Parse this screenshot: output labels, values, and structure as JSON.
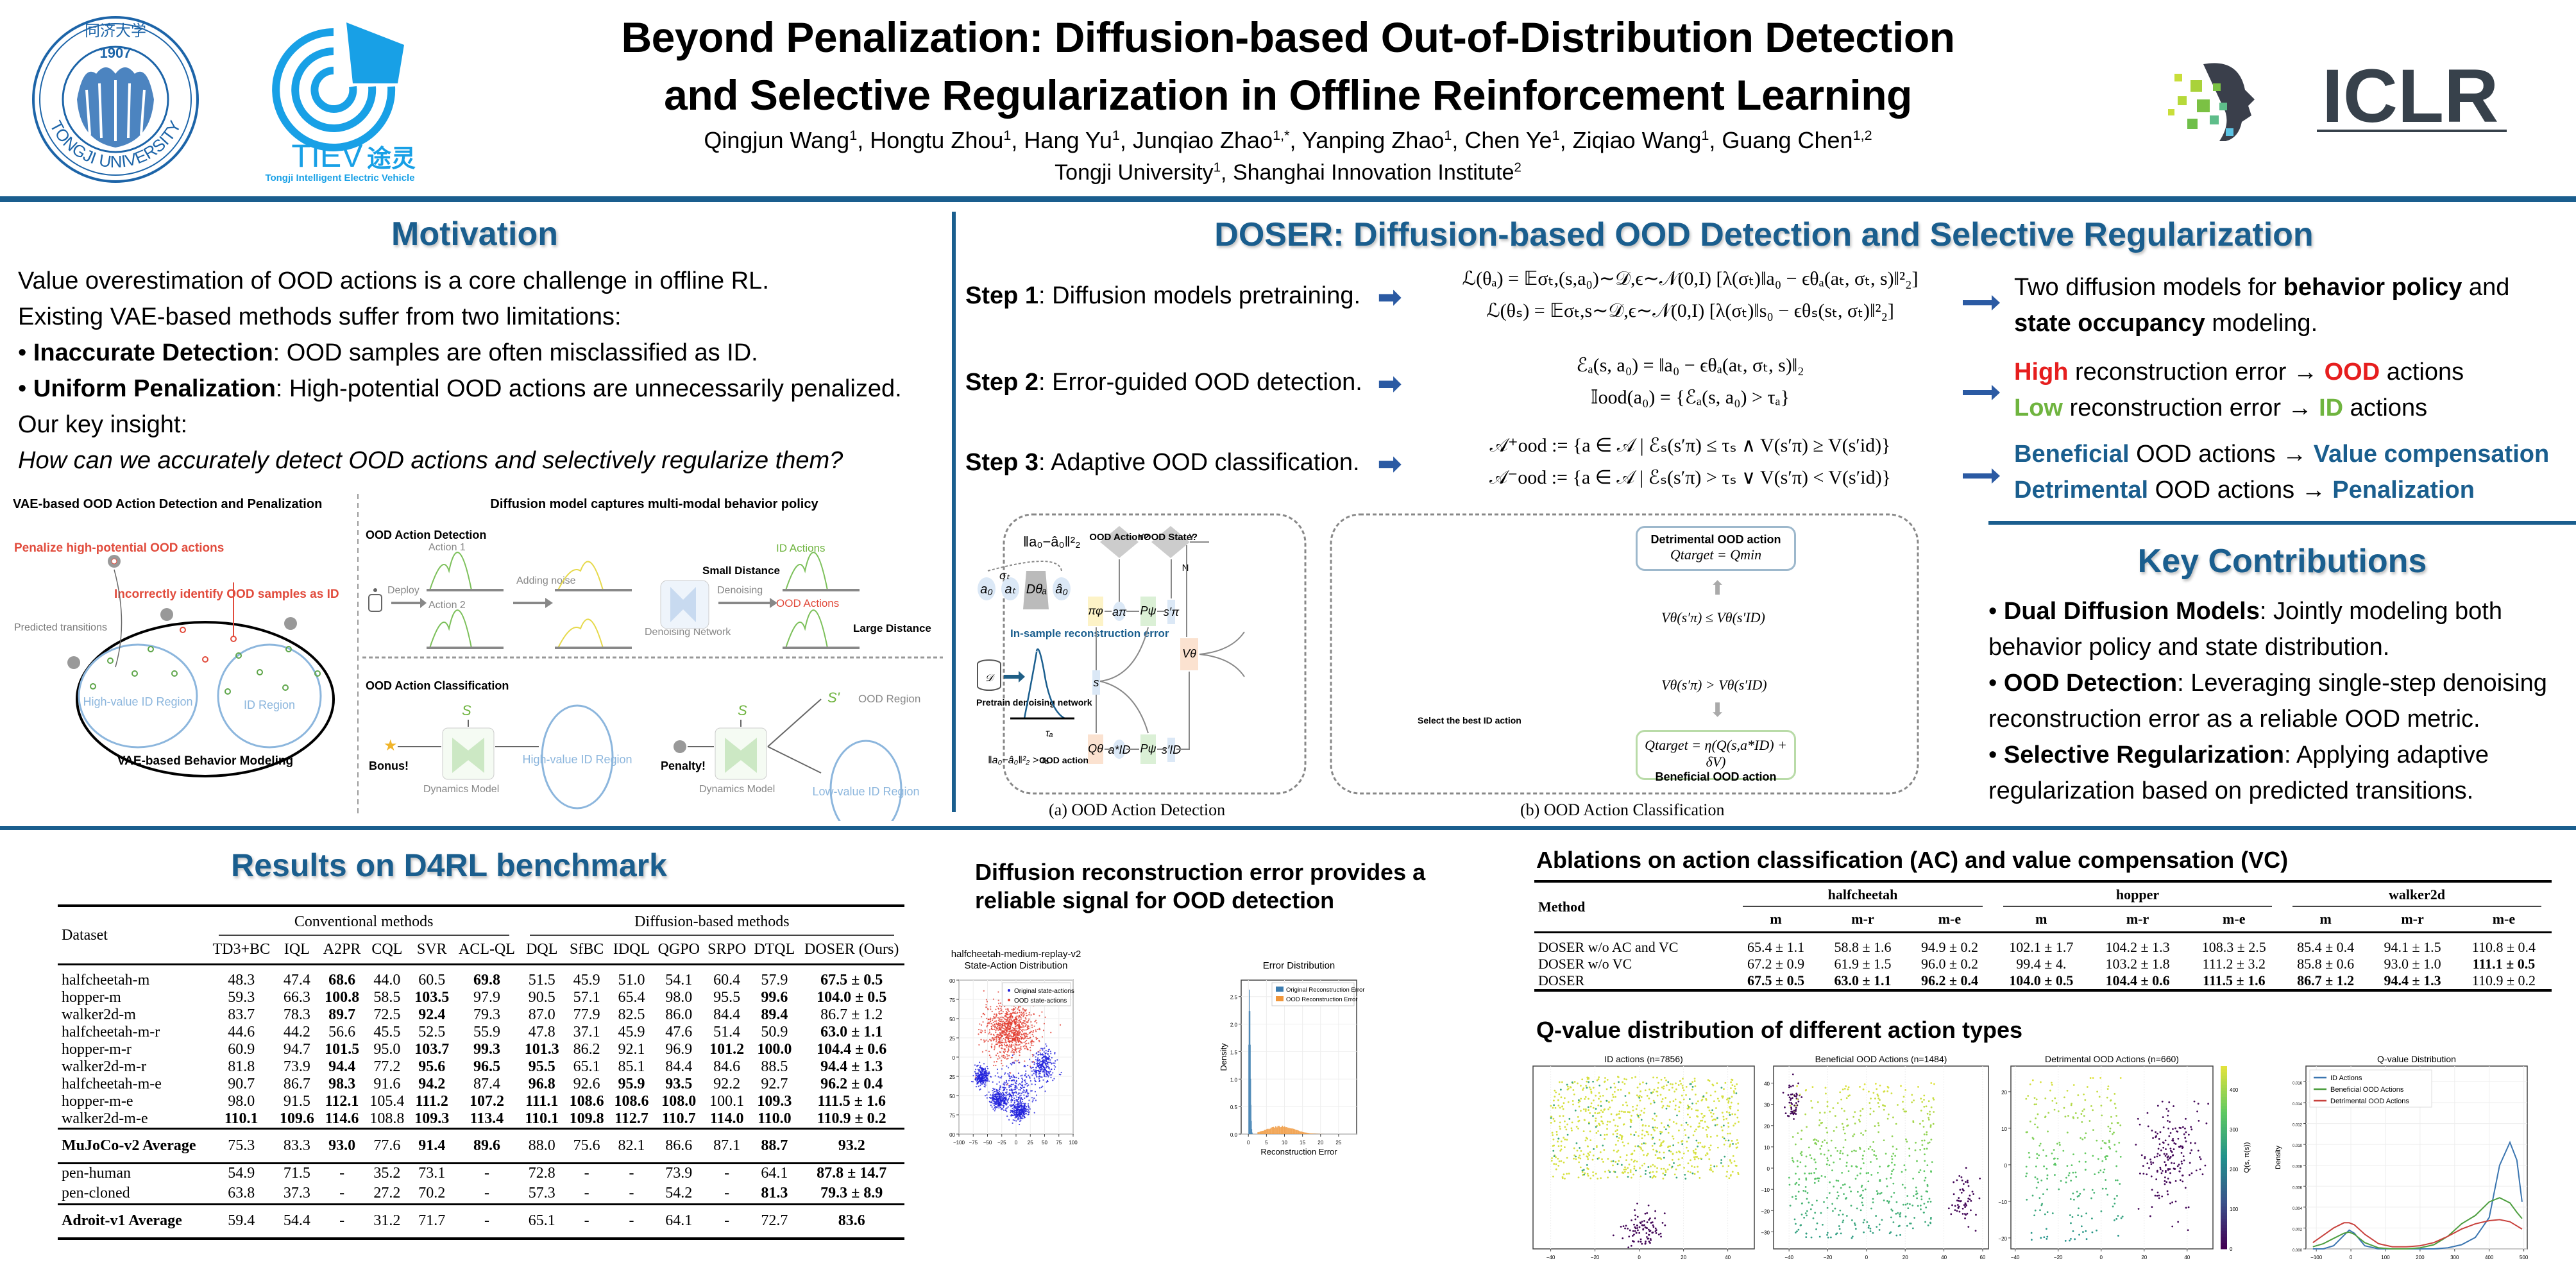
{
  "header": {
    "logos": {
      "tongji": {
        "text_top": "同济大学",
        "year": "1907",
        "text_bottom": "TONGJI UNIVERSITY"
      },
      "tiev": {
        "name": "TIEV",
        "chinese": "途灵",
        "subtitle": "Tongji Intelligent Electric Vehicle"
      },
      "iclr": {
        "name": "ICLR"
      }
    },
    "title_line1": "Beyond Penalization: Diffusion-based Out-of-Distribution Detection",
    "title_line2": "and Selective Regularization in Offline Reinforcement Learning",
    "authors": [
      {
        "name": "Qingjun Wang",
        "aff": "1"
      },
      {
        "name": "Hongtu Zhou",
        "aff": "1"
      },
      {
        "name": "Hang Yu",
        "aff": "1"
      },
      {
        "name": "Junqiao Zhao",
        "aff": "1,*"
      },
      {
        "name": "Yanping Zhao",
        "aff": "1"
      },
      {
        "name": "Chen Ye",
        "aff": "1"
      },
      {
        "name": "Ziqiao Wang",
        "aff": "1"
      },
      {
        "name": "Guang Chen",
        "aff": "1,2"
      }
    ],
    "affiliations": [
      {
        "name": "Tongji University",
        "aff": "1"
      },
      {
        "name": "Shanghai Innovation Institute",
        "aff": "2"
      }
    ]
  },
  "colors": {
    "accent": "#1a5e8e",
    "red": "#e61e1e",
    "green": "#6fb43f"
  },
  "motivation": {
    "title": "Motivation",
    "line1": "Value overestimation of OOD actions is a core challenge in offline RL.",
    "line2": "Existing VAE-based methods suffer from two limitations:",
    "bullet1_bold": "Inaccurate Detection",
    "bullet1_rest": ": OOD samples are often misclassified as ID.",
    "bullet2_bold": "Uniform Penalization",
    "bullet2_rest": ": High-potential OOD actions are unnecessarily penalized.",
    "line3": "Our key insight:",
    "question": "How can we accurately detect OOD actions and selectively regularize them?",
    "figure": {
      "left_title": "VAE-based OOD Action Detection and Penalization",
      "right_title": "Diffusion model captures multi-modal behavior policy",
      "penalize": "Penalize high-potential OOD actions",
      "incorrect": "Incorrectly identify OOD samples as ID",
      "predicted": "Predicted transitions",
      "high_value_region": "High-value ID Region",
      "id_region": "ID Region",
      "vae_label": "VAE-based Behavior Modeling",
      "detection_title": "OOD Action Detection",
      "action1": "Action 1",
      "action2": "Action 2",
      "deploy": "Deploy",
      "adding_noise": "Adding noise",
      "denoising": "Denoising",
      "denoising_network": "Denoising Network",
      "id_actions": "ID Actions",
      "ood_actions": "OOD Actions",
      "small_distance": "Small Distance",
      "large_distance": "Large Distance",
      "classification_title": "OOD Action Classification",
      "bonus": "Bonus!",
      "penalty": "Penalty!",
      "dynamics_model": "Dynamics Model",
      "s": "S",
      "s_prime": "S'",
      "ood_region": "OOD Region",
      "low_value_region": "Low-value ID Region"
    }
  },
  "doser": {
    "title": "DOSER: Diffusion-based OOD Detection and Selective Regularization",
    "steps": [
      {
        "label": "Step 1",
        "text": ": Diffusion models pretraining.",
        "eq1": "ℒ(θₐ) = 𝔼σₜ,(s,a₀)∼𝒟,ϵ∼𝒩(0,I) [λ(σₜ)‖a₀ − ϵθₐ(aₜ, σₜ, s)‖²₂]",
        "eq2": "ℒ(θₛ) = 𝔼σₜ,s∼𝒟,ϵ∼𝒩(0,I) [λ(σₜ)‖s₀ − ϵθₛ(sₜ, σₜ)‖²₂]"
      },
      {
        "label": "Step 2",
        "text": ": Error-guided OOD detection.",
        "eq1": "ℰₐ(s, a₀) = ‖a₀ − ϵθₐ(aₜ, σₜ, s)‖₂",
        "eq2": "𝕀ood(a₀) = {ℰₐ(s, a₀) > τₐ}"
      },
      {
        "label": "Step 3",
        "text": ": Adaptive OOD classification.",
        "eq1": "𝒜⁺ood := {a ∈ 𝒜 | ℰₛ(s′π) ≤ τₛ ∧ V(s′π) ≥ V(s′id)}",
        "eq2": "𝒜⁻ood := {a ∈ 𝒜 | ℰₛ(s′π) > τₛ ∨ V(s′π) < V(s′id)}"
      }
    ],
    "outcomes": {
      "o1_pre": "Two diffusion models for ",
      "o1_b1": "behavior policy",
      "o1_mid": " and ",
      "o1_b2": "state occupancy",
      "o1_post": " modeling.",
      "o2a_hi": "High",
      "o2a_mid": " reconstruction error → ",
      "o2a_ood": "OOD",
      "o2a_post": " actions",
      "o2b_lo": "Low",
      "o2b_mid": " reconstruction error → ",
      "o2b_id": "ID",
      "o2b_post": " actions",
      "o3a_b": "Beneficial",
      "o3a_mid": " OOD actions → ",
      "o3a_r": "Value compensation",
      "o3b_d": "Detrimental",
      "o3b_mid": " OOD actions → ",
      "o3b_r": "Penalization"
    },
    "figure": {
      "caption_a": "(a) OOD Action Detection",
      "caption_b": "(b) OOD Action Classification",
      "recon_norm": "‖a₀−â₀‖²₂",
      "sigma_t": "σₜ",
      "a0": "a₀",
      "at": "aₜ",
      "D": "Dθₐ",
      "a0hat": "â₀",
      "in_sample": "In-sample reconstruction error",
      "dataset": "𝒟",
      "pretrain": "Pretrain denoising network",
      "tau_a": "τₐ",
      "rule": "‖a₀−â₀‖²₂ > τₐ",
      "ood_action": "OOD action",
      "ood_action_q": "OOD Action?",
      "ood_state_q": "OOD State?",
      "yes": "Y",
      "no": "N",
      "pi": "πφ",
      "a_pi": "aπ",
      "P": "Pψ",
      "s_pi": "s′π",
      "s": "s",
      "V": "Vθ",
      "Q": "Qθ",
      "a_id": "a*ID",
      "s_id": "s′ID",
      "select_best": "Select the best ID action",
      "detrimental_box": "Detrimental OOD action",
      "detrimental_eq": "Qtarget = Qmin",
      "cond_le": "Vθ(s′π) ≤ Vθ(s′ID)",
      "cond_gt": "Vθ(s′π) > Vθ(s′ID)",
      "beneficial_eq": "Qtarget = η(Q(s,a*ID) + δV)",
      "beneficial_box": "Beneficial OOD action"
    }
  },
  "contributions": {
    "title": "Key Contributions",
    "items": [
      {
        "bold": "Dual Diffusion Models",
        "text": ": Jointly modeling both behavior policy and state distribution."
      },
      {
        "bold": "OOD Detection",
        "text": ": Leveraging single-step denoising reconstruction error as a reliable OOD metric."
      },
      {
        "bold": "Selective Regularization",
        "text": ": Applying adaptive regularization based on predicted transitions."
      }
    ]
  },
  "results": {
    "title": "Results on D4RL benchmark",
    "dataset_header": "Dataset",
    "group_conventional": "Conventional methods",
    "group_diffusion": "Diffusion-based methods",
    "columns": [
      "TD3+BC",
      "IQL",
      "A2PR",
      "CQL",
      "SVR",
      "ACL-QL",
      "DQL",
      "SfBC",
      "IDQL",
      "QGPO",
      "SRPO",
      "DTQL",
      "DOSER (Ours)"
    ],
    "rows": [
      {
        "name": "halfcheetah-m",
        "values": [
          "48.3",
          "47.4",
          "68.6",
          "44.0",
          "60.5",
          "69.8",
          "51.5",
          "45.9",
          "51.0",
          "54.1",
          "60.4",
          "57.9",
          "67.5 ± 0.5"
        ],
        "bold": [
          2,
          5,
          12
        ]
      },
      {
        "name": "hopper-m",
        "values": [
          "59.3",
          "66.3",
          "100.8",
          "58.5",
          "103.5",
          "97.9",
          "90.5",
          "57.1",
          "65.4",
          "98.0",
          "95.5",
          "99.6",
          "104.0 ± 0.5"
        ],
        "bold": [
          2,
          4,
          11,
          12
        ]
      },
      {
        "name": "walker2d-m",
        "values": [
          "83.7",
          "78.3",
          "89.7",
          "72.5",
          "92.4",
          "79.3",
          "87.0",
          "77.9",
          "82.5",
          "86.0",
          "84.4",
          "89.4",
          "86.7 ± 1.2"
        ],
        "bold": [
          2,
          4,
          11
        ]
      },
      {
        "name": "halfcheetah-m-r",
        "values": [
          "44.6",
          "44.2",
          "56.6",
          "45.5",
          "52.5",
          "55.9",
          "47.8",
          "37.1",
          "45.9",
          "47.6",
          "51.4",
          "50.9",
          "63.0 ± 1.1"
        ],
        "bold": [
          12
        ]
      },
      {
        "name": "hopper-m-r",
        "values": [
          "60.9",
          "94.7",
          "101.5",
          "95.0",
          "103.7",
          "99.3",
          "101.3",
          "86.2",
          "92.1",
          "96.9",
          "101.2",
          "100.0",
          "104.4 ± 0.6"
        ],
        "bold": [
          2,
          4,
          5,
          6,
          10,
          11,
          12
        ]
      },
      {
        "name": "walker2d-m-r",
        "values": [
          "81.8",
          "73.9",
          "94.4",
          "77.2",
          "95.6",
          "96.5",
          "95.5",
          "65.1",
          "85.1",
          "84.4",
          "84.6",
          "88.5",
          "94.4 ± 1.3"
        ],
        "bold": [
          2,
          4,
          5,
          6,
          12
        ]
      },
      {
        "name": "halfcheetah-m-e",
        "values": [
          "90.7",
          "86.7",
          "98.3",
          "91.6",
          "94.2",
          "87.4",
          "96.8",
          "92.6",
          "95.9",
          "93.5",
          "92.2",
          "92.7",
          "96.2 ± 0.4"
        ],
        "bold": [
          2,
          4,
          6,
          8,
          9,
          12
        ]
      },
      {
        "name": "hopper-m-e",
        "values": [
          "98.0",
          "91.5",
          "112.1",
          "105.4",
          "111.2",
          "107.2",
          "111.1",
          "108.6",
          "108.6",
          "108.0",
          "100.1",
          "109.3",
          "111.5 ± 1.6"
        ],
        "bold": [
          2,
          4,
          5,
          6,
          7,
          8,
          9,
          11,
          12
        ]
      },
      {
        "name": "walker2d-m-e",
        "values": [
          "110.1",
          "109.6",
          "114.6",
          "108.8",
          "109.3",
          "113.4",
          "110.1",
          "109.8",
          "112.7",
          "110.7",
          "114.0",
          "110.0",
          "110.9 ± 0.2"
        ],
        "bold": [
          0,
          1,
          2,
          4,
          5,
          6,
          7,
          8,
          9,
          10,
          11,
          12
        ]
      }
    ],
    "mujoco_avg": {
      "name": "MuJoCo-v2 Average",
      "values": [
        "75.3",
        "83.3",
        "93.0",
        "77.6",
        "91.4",
        "89.6",
        "88.0",
        "75.6",
        "82.1",
        "86.6",
        "87.1",
        "88.7",
        "93.2"
      ],
      "bold": [
        2,
        4,
        5,
        11,
        12
      ]
    },
    "adroit_rows": [
      {
        "name": "pen-human",
        "values": [
          "54.9",
          "71.5",
          "-",
          "35.2",
          "73.1",
          "-",
          "72.8",
          "-",
          "-",
          "73.9",
          "-",
          "64.1",
          "87.8 ± 14.7"
        ],
        "bold": [
          12
        ]
      },
      {
        "name": "pen-cloned",
        "values": [
          "63.8",
          "37.3",
          "-",
          "27.2",
          "70.2",
          "-",
          "57.3",
          "-",
          "-",
          "54.2",
          "-",
          "81.3",
          "79.3 ± 8.9"
        ],
        "bold": [
          11,
          12
        ]
      }
    ],
    "adroit_avg": {
      "name": "Adroit-v1 Average",
      "values": [
        "59.4",
        "54.4",
        "-",
        "31.2",
        "71.7",
        "-",
        "65.1",
        "-",
        "-",
        "64.1",
        "-",
        "72.7",
        "83.6"
      ],
      "bold": [
        12
      ]
    }
  },
  "recon": {
    "title": "Diffusion reconstruction error provides a reliable signal for OOD detection"
  },
  "ablation": {
    "title": "Ablations on action classification (AC) and value compensation (VC)",
    "method_header": "Method",
    "groups": [
      "halfcheetah",
      "hopper",
      "walker2d"
    ],
    "subcols": [
      "m",
      "m-r",
      "m-e",
      "m",
      "m-r",
      "m-e",
      "m",
      "m-r",
      "m-e"
    ],
    "rows": [
      {
        "name": "DOSER w/o AC and VC",
        "values": [
          "65.4 ± 1.1",
          "58.8 ± 1.6",
          "94.9 ± 0.2",
          "102.1 ± 1.7",
          "104.2 ± 1.3",
          "108.3 ± 2.5",
          "85.4 ± 0.4",
          "94.1 ± 1.5",
          "110.8 ± 0.4"
        ],
        "bold": []
      },
      {
        "name": "DOSER w/o VC",
        "values": [
          "67.2 ± 0.9",
          "61.9 ± 1.5",
          "96.0 ± 0.2",
          "99.4 ± 4.",
          "103.2 ± 1.8",
          "111.2 ± 3.2",
          "85.8 ± 0.6",
          "93.0 ± 1.0",
          "111.1 ± 0.5"
        ],
        "bold": [
          8
        ]
      },
      {
        "name": "DOSER",
        "values": [
          "67.5 ± 0.5",
          "63.0 ± 1.1",
          "96.2 ± 0.4",
          "104.0 ± 0.5",
          "104.4 ± 0.6",
          "111.5 ± 1.6",
          "86.7 ± 1.2",
          "94.4 ± 1.3",
          "110.9 ± 0.2"
        ],
        "bold": [
          0,
          1,
          2,
          3,
          4,
          5,
          6,
          7
        ]
      }
    ]
  },
  "qvalue": {
    "title": "Q-value distribution of different action types"
  },
  "chart_data": [
    {
      "id": "state-action-tsne",
      "type": "scatter",
      "title": "halfcheetah-medium-replay-v2\nState-Action Distribution",
      "xlabel": "",
      "ylabel": "",
      "xlim": [
        -100,
        100
      ],
      "ylim": [
        -100,
        100
      ],
      "xticks": [
        "−100",
        "−75",
        "−50",
        "−25",
        "0",
        "25",
        "50",
        "75",
        "100"
      ],
      "yticks": [
        "100",
        "75",
        "50",
        "25",
        "0",
        "−25",
        "−50",
        "−75",
        "−100"
      ],
      "grid": true,
      "legend": "top-right",
      "series": [
        {
          "name": "Original state-actions",
          "color": "#1f1fdc",
          "clusters": [
            [
              -60,
              -25,
              12,
              12
            ],
            [
              0,
              -40,
              35,
              30
            ],
            [
              50,
              -10,
              20,
              20
            ],
            [
              -30,
              -55,
              15,
              12
            ],
            [
              5,
              -70,
              15,
              12
            ]
          ]
        },
        {
          "name": "OOD state-actions",
          "color": "#e23b2e",
          "clusters": [
            [
              -10,
              35,
              45,
              35
            ]
          ]
        }
      ]
    },
    {
      "id": "error-distribution",
      "type": "bar",
      "title": "Error Distribution",
      "xlabel": "Reconstruction Error",
      "ylabel": "Density",
      "xlim": [
        -2,
        30
      ],
      "ylim": [
        0,
        2.8
      ],
      "xticks": [
        "0",
        "5",
        "10",
        "15",
        "20",
        "25"
      ],
      "yticks": [
        "0.0",
        "0.5",
        "1.0",
        "1.5",
        "2.0",
        "2.5"
      ],
      "grid": true,
      "legend": "top-right",
      "series": [
        {
          "name": "Original Reconstruction Error",
          "color": "#3b7cb0",
          "peak_x": 0.3,
          "peak_density": 2.68,
          "range": [
            0,
            1.2
          ]
        },
        {
          "name": "OOD Reconstruction Error",
          "color": "#f0963a",
          "peak_x": 9,
          "peak_density": 0.14,
          "range": [
            2.5,
            21
          ]
        }
      ]
    },
    {
      "id": "id-actions-tsne",
      "type": "scatter",
      "title": "ID actions (n=7856)",
      "xlim": [
        -48,
        52
      ],
      "ylim": [
        -38,
        48
      ],
      "xticks": [
        "−40",
        "−20",
        "0",
        "20",
        "40"
      ],
      "colormap": "viridis",
      "grid": true
    },
    {
      "id": "beneficial-ood-tsne",
      "type": "scatter",
      "title": "Beneficial OOD Actions (n=1484)",
      "xlim": [
        -48,
        63
      ],
      "ylim": [
        -38,
        48
      ],
      "xticks": [
        "−40",
        "−20",
        "0",
        "20",
        "40",
        "60"
      ],
      "yticks": [
        "40",
        "30",
        "20",
        "10",
        "0",
        "−10",
        "−20",
        "−30"
      ],
      "colormap": "viridis",
      "grid": true
    },
    {
      "id": "detrimental-ood-tsne",
      "type": "scatter",
      "title": "Detrimental OOD Actions (n=660)",
      "xlim": [
        -42,
        52
      ],
      "ylim": [
        -23,
        27
      ],
      "xticks": [
        "−40",
        "−20",
        "0",
        "20",
        "40"
      ],
      "yticks": [
        "20",
        "10",
        "0",
        "−10",
        "−20"
      ],
      "colormap": "viridis",
      "colorbar": {
        "label": "Q(s, π(s))",
        "ticks": [
          "0",
          "100",
          "200",
          "300",
          "400"
        ],
        "range": [
          0,
          460
        ]
      },
      "grid": true
    },
    {
      "id": "qvalue-distribution",
      "type": "line",
      "title": "Q-value Distribution",
      "xlabel": "",
      "ylabel": "Density",
      "xlim": [
        -130,
        510
      ],
      "ylim": [
        0,
        0.0175
      ],
      "xticks": [
        "−100",
        "0",
        "100",
        "200",
        "300",
        "400",
        "500"
      ],
      "yticks": [
        "0.000",
        "0.002",
        "0.004",
        "0.006",
        "0.008",
        "0.010",
        "0.012",
        "0.014",
        "0.016"
      ],
      "grid": true,
      "legend": "top-left",
      "x": [
        -110,
        -80,
        -50,
        -20,
        -5,
        10,
        40,
        80,
        120,
        160,
        200,
        240,
        280,
        320,
        360,
        400,
        430,
        460,
        480,
        495
      ],
      "series": [
        {
          "name": "ID Actions",
          "color": "#3a75b0",
          "values": [
            0,
            0,
            0.0003,
            0.0013,
            0.0018,
            0.0015,
            0.0003,
            0,
            0,
            0,
            0,
            0,
            0.0001,
            0.0004,
            0.0011,
            0.003,
            0.008,
            0.0102,
            0.0085,
            0.0045
          ]
        },
        {
          "name": "Beneficial OOD Actions",
          "color": "#4d9e3f",
          "values": [
            0.0002,
            0.0005,
            0.001,
            0.0015,
            0.0016,
            0.0014,
            0.0006,
            0.0001,
            0,
            0,
            0.0001,
            0.0004,
            0.0012,
            0.0024,
            0.0032,
            0.0045,
            0.0049,
            0.0044,
            0.0035,
            0.0029
          ]
        },
        {
          "name": "Detrimental OOD Actions",
          "color": "#c8413c",
          "values": [
            0.0006,
            0.0013,
            0.002,
            0.0025,
            0.0025,
            0.0023,
            0.0014,
            0.0005,
            0.0002,
            0.0002,
            0.0003,
            0.0006,
            0.0012,
            0.0019,
            0.0024,
            0.0027,
            0.0028,
            0.0026,
            0.0022,
            0.0019
          ]
        }
      ]
    }
  ]
}
